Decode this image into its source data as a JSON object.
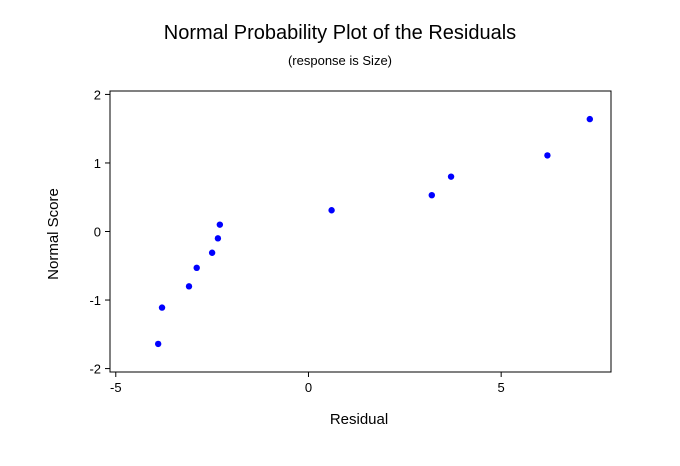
{
  "chart_data": {
    "type": "scatter",
    "title": "Normal Probability Plot of the Residuals",
    "subtitle": "(response is Size)",
    "xlabel": "Residual",
    "ylabel": "Normal Score",
    "xlim": [
      -5.15,
      7.85
    ],
    "ylim": [
      -2.05,
      2.05
    ],
    "xticks": [
      -5,
      0,
      5
    ],
    "xtick_labels": [
      "-5",
      "0",
      "5"
    ],
    "yticks": [
      -2,
      -1,
      0,
      1,
      2
    ],
    "ytick_labels": [
      "-2",
      "-1",
      "0",
      "1",
      "2"
    ],
    "grid": false,
    "point_color": "#0000ff",
    "points": [
      {
        "x": -3.9,
        "y": -1.64
      },
      {
        "x": -3.8,
        "y": -1.11
      },
      {
        "x": -3.1,
        "y": -0.8
      },
      {
        "x": -2.9,
        "y": -0.53
      },
      {
        "x": -2.5,
        "y": -0.31
      },
      {
        "x": -2.35,
        "y": -0.1
      },
      {
        "x": -2.3,
        "y": 0.1
      },
      {
        "x": 0.6,
        "y": 0.31
      },
      {
        "x": 3.2,
        "y": 0.53
      },
      {
        "x": 3.7,
        "y": 0.8
      },
      {
        "x": 6.2,
        "y": 1.11
      },
      {
        "x": 7.3,
        "y": 1.64
      }
    ]
  }
}
